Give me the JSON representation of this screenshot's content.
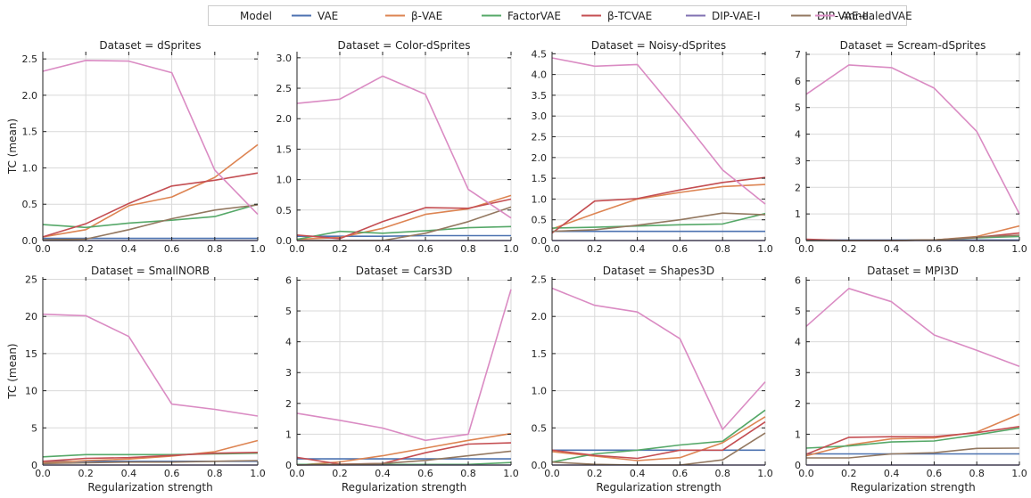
{
  "legend": {
    "title": "Model",
    "placement": "top-center",
    "entries": [
      {
        "label": "VAE",
        "color": "#4c72b0"
      },
      {
        "label": "β-VAE",
        "color": "#dd8452"
      },
      {
        "label": "FactorVAE",
        "color": "#55a868"
      },
      {
        "label": "β-TCVAE",
        "color": "#c44e52"
      },
      {
        "label": "DIP-VAE-I",
        "color": "#8172b2"
      },
      {
        "label": "DIP-VAE-II",
        "color": "#937860"
      },
      {
        "label": "AnnealedVAE",
        "color": "#da8bc3"
      }
    ]
  },
  "chart_data": [
    {
      "type": "line",
      "title": "Dataset = dSprites",
      "xlabel": "",
      "ylabel": "TC (mean)",
      "x": [
        0.0,
        0.2,
        0.4,
        0.6,
        0.8,
        1.0
      ],
      "xlim": [
        0,
        1
      ],
      "ylim": [
        0,
        2.6
      ],
      "xticks": [
        "0.0",
        "0.2",
        "0.4",
        "0.6",
        "0.8",
        "1.0"
      ],
      "yticks": [
        "0.0",
        "0.5",
        "1.0",
        "1.5",
        "2.0",
        "2.5"
      ],
      "ytick_values": [
        0,
        0.5,
        1,
        1.5,
        2,
        2.5
      ],
      "grid": true,
      "series": [
        {
          "name": "VAE",
          "values": [
            0.03,
            0.03,
            0.03,
            0.03,
            0.03,
            0.03
          ]
        },
        {
          "name": "β-VAE",
          "values": [
            0.05,
            0.15,
            0.48,
            0.6,
            0.87,
            1.32
          ]
        },
        {
          "name": "FactorVAE",
          "values": [
            0.22,
            0.18,
            0.24,
            0.28,
            0.33,
            0.5
          ]
        },
        {
          "name": "β-TCVAE",
          "values": [
            0.05,
            0.23,
            0.51,
            0.75,
            0.83,
            0.93
          ]
        },
        {
          "name": "DIP-VAE-I",
          "values": [
            0.0,
            0.0,
            0.0,
            0.0,
            0.0,
            0.0
          ]
        },
        {
          "name": "DIP-VAE-II",
          "values": [
            0.01,
            0.02,
            0.15,
            0.3,
            0.42,
            0.49
          ]
        },
        {
          "name": "AnnealedVAE",
          "values": [
            2.33,
            2.48,
            2.47,
            2.31,
            0.97,
            0.36
          ]
        }
      ]
    },
    {
      "type": "line",
      "title": "Dataset = Color-dSprites",
      "xlabel": "",
      "ylabel": "",
      "x": [
        0.0,
        0.2,
        0.4,
        0.6,
        0.8,
        1.0
      ],
      "xlim": [
        0,
        1
      ],
      "ylim": [
        0,
        3.1
      ],
      "xticks": [
        "0.0",
        "0.2",
        "0.4",
        "0.6",
        "0.8",
        "1.0"
      ],
      "yticks": [
        "0.0",
        "0.5",
        "1.0",
        "1.5",
        "2.0",
        "2.5",
        "3.0"
      ],
      "ytick_values": [
        0,
        0.5,
        1,
        1.5,
        2,
        2.5,
        3
      ],
      "grid": true,
      "series": [
        {
          "name": "VAE",
          "values": [
            0.07,
            0.07,
            0.07,
            0.08,
            0.08,
            0.08
          ]
        },
        {
          "name": "β-VAE",
          "values": [
            0.02,
            0.05,
            0.2,
            0.43,
            0.52,
            0.74
          ]
        },
        {
          "name": "FactorVAE",
          "values": [
            0.02,
            0.15,
            0.12,
            0.16,
            0.21,
            0.23
          ]
        },
        {
          "name": "β-TCVAE",
          "values": [
            0.09,
            0.03,
            0.31,
            0.54,
            0.53,
            0.68
          ]
        },
        {
          "name": "DIP-VAE-I",
          "values": [
            0.0,
            0.0,
            0.0,
            0.0,
            0.0,
            0.0
          ]
        },
        {
          "name": "DIP-VAE-II",
          "values": [
            0.0,
            0.0,
            0.0,
            0.12,
            0.31,
            0.55
          ]
        },
        {
          "name": "AnnealedVAE",
          "values": [
            2.25,
            2.32,
            2.7,
            2.4,
            0.84,
            0.37
          ]
        }
      ]
    },
    {
      "type": "line",
      "title": "Dataset = Noisy-dSprites",
      "xlabel": "",
      "ylabel": "",
      "x": [
        0.0,
        0.2,
        0.4,
        0.6,
        0.8,
        1.0
      ],
      "xlim": [
        0,
        1
      ],
      "ylim": [
        0,
        4.55
      ],
      "xticks": [
        "0.0",
        "0.2",
        "0.4",
        "0.6",
        "0.8",
        "1.0"
      ],
      "yticks": [
        "0.0",
        "0.5",
        "1.0",
        "1.5",
        "2.0",
        "2.5",
        "3.0",
        "3.5",
        "4.0",
        "4.5"
      ],
      "ytick_values": [
        0,
        0.5,
        1,
        1.5,
        2,
        2.5,
        3,
        3.5,
        4,
        4.5
      ],
      "grid": true,
      "series": [
        {
          "name": "VAE",
          "values": [
            0.22,
            0.22,
            0.22,
            0.22,
            0.22,
            0.22
          ]
        },
        {
          "name": "β-VAE",
          "values": [
            0.28,
            0.65,
            1.0,
            1.16,
            1.3,
            1.35
          ]
        },
        {
          "name": "FactorVAE",
          "values": [
            0.3,
            0.32,
            0.35,
            0.38,
            0.4,
            0.65
          ]
        },
        {
          "name": "β-TCVAE",
          "values": [
            0.18,
            0.95,
            1.01,
            1.22,
            1.4,
            1.52
          ]
        },
        {
          "name": "DIP-VAE-I",
          "values": [
            0.0,
            0.0,
            0.0,
            0.0,
            0.0,
            0.0
          ]
        },
        {
          "name": "DIP-VAE-II",
          "values": [
            0.22,
            0.26,
            0.37,
            0.5,
            0.66,
            0.62
          ]
        },
        {
          "name": "AnnealedVAE",
          "values": [
            4.4,
            4.2,
            4.24,
            3.0,
            1.7,
            0.88
          ]
        }
      ]
    },
    {
      "type": "line",
      "title": "Dataset = Scream-dSprites",
      "xlabel": "",
      "ylabel": "",
      "x": [
        0.0,
        0.2,
        0.4,
        0.6,
        0.8,
        1.0
      ],
      "xlim": [
        0,
        1
      ],
      "ylim": [
        0,
        7.1
      ],
      "xticks": [
        "0.0",
        "0.2",
        "0.4",
        "0.6",
        "0.8",
        "1.0"
      ],
      "yticks": [
        "0",
        "1",
        "2",
        "3",
        "4",
        "5",
        "6",
        "7"
      ],
      "ytick_values": [
        0,
        1,
        2,
        3,
        4,
        5,
        6,
        7
      ],
      "grid": true,
      "series": [
        {
          "name": "VAE",
          "values": [
            0.02,
            0.02,
            0.02,
            0.02,
            0.02,
            0.02
          ]
        },
        {
          "name": "β-VAE",
          "values": [
            0.0,
            0.0,
            0.0,
            0.02,
            0.15,
            0.55
          ]
        },
        {
          "name": "FactorVAE",
          "values": [
            0.0,
            0.0,
            0.0,
            0.02,
            0.1,
            0.15
          ]
        },
        {
          "name": "β-TCVAE",
          "values": [
            0.05,
            0.0,
            0.0,
            0.02,
            0.12,
            0.28
          ]
        },
        {
          "name": "DIP-VAE-I",
          "values": [
            0.0,
            0.0,
            0.0,
            0.0,
            0.0,
            0.0
          ]
        },
        {
          "name": "DIP-VAE-II",
          "values": [
            0.0,
            0.0,
            0.0,
            0.02,
            0.13,
            0.2
          ]
        },
        {
          "name": "AnnealedVAE",
          "values": [
            5.5,
            6.6,
            6.5,
            5.73,
            4.1,
            1.0
          ]
        }
      ]
    },
    {
      "type": "line",
      "title": "Dataset = SmallNORB",
      "xlabel": "Regularization strength",
      "ylabel": "TC (mean)",
      "x": [
        0.0,
        0.2,
        0.4,
        0.6,
        0.8,
        1.0
      ],
      "xlim": [
        0,
        1
      ],
      "ylim": [
        0,
        25.3
      ],
      "xticks": [
        "0.0",
        "0.2",
        "0.4",
        "0.6",
        "0.8",
        "1.0"
      ],
      "yticks": [
        "0",
        "5",
        "10",
        "15",
        "20",
        "25"
      ],
      "ytick_values": [
        0,
        5,
        10,
        15,
        20,
        25
      ],
      "grid": true,
      "series": [
        {
          "name": "VAE",
          "values": [
            0.5,
            0.5,
            0.5,
            0.5,
            0.5,
            0.5
          ]
        },
        {
          "name": "β-VAE",
          "values": [
            0.3,
            0.6,
            0.8,
            1.2,
            1.8,
            3.3
          ]
        },
        {
          "name": "FactorVAE",
          "values": [
            1.1,
            1.4,
            1.4,
            1.4,
            1.5,
            1.6
          ]
        },
        {
          "name": "β-TCVAE",
          "values": [
            0.5,
            0.9,
            1.0,
            1.3,
            1.6,
            1.7
          ]
        },
        {
          "name": "DIP-VAE-I",
          "values": [
            0.0,
            0.0,
            0.0,
            0.0,
            0.0,
            0.0
          ]
        },
        {
          "name": "DIP-VAE-II",
          "values": [
            0.2,
            0.3,
            0.4,
            0.4,
            0.5,
            0.6
          ]
        },
        {
          "name": "AnnealedVAE",
          "values": [
            20.3,
            20.1,
            17.3,
            8.2,
            7.5,
            6.6
          ]
        }
      ]
    },
    {
      "type": "line",
      "title": "Dataset = Cars3D",
      "xlabel": "Regularization strength",
      "ylabel": "",
      "x": [
        0.0,
        0.2,
        0.4,
        0.6,
        0.8,
        1.0
      ],
      "xlim": [
        0,
        1
      ],
      "ylim": [
        0,
        6.1
      ],
      "xticks": [
        "0.0",
        "0.2",
        "0.4",
        "0.6",
        "0.8",
        "1.0"
      ],
      "yticks": [
        "0",
        "1",
        "2",
        "3",
        "4",
        "5",
        "6"
      ],
      "ytick_values": [
        0,
        1,
        2,
        3,
        4,
        5,
        6
      ],
      "grid": true,
      "series": [
        {
          "name": "VAE",
          "values": [
            0.2,
            0.2,
            0.2,
            0.2,
            0.2,
            0.2
          ]
        },
        {
          "name": "β-VAE",
          "values": [
            0.0,
            0.1,
            0.3,
            0.55,
            0.8,
            1.02
          ]
        },
        {
          "name": "FactorVAE",
          "values": [
            0.02,
            0.02,
            0.02,
            0.02,
            0.02,
            0.08
          ]
        },
        {
          "name": "β-TCVAE",
          "values": [
            0.25,
            0.03,
            0.05,
            0.4,
            0.68,
            0.72
          ]
        },
        {
          "name": "DIP-VAE-I",
          "values": [
            0.0,
            0.0,
            0.0,
            0.0,
            0.0,
            0.0
          ]
        },
        {
          "name": "DIP-VAE-II",
          "values": [
            0.0,
            0.02,
            0.05,
            0.15,
            0.3,
            0.45
          ]
        },
        {
          "name": "AnnealedVAE",
          "values": [
            1.68,
            1.45,
            1.2,
            0.8,
            1.0,
            5.7
          ]
        }
      ]
    },
    {
      "type": "line",
      "title": "Dataset = Shapes3D",
      "xlabel": "Regularization strength",
      "ylabel": "",
      "x": [
        0.0,
        0.2,
        0.4,
        0.6,
        0.8,
        1.0
      ],
      "xlim": [
        0,
        1
      ],
      "ylim": [
        0,
        2.53
      ],
      "xticks": [
        "0.0",
        "0.2",
        "0.4",
        "0.6",
        "0.8",
        "1.0"
      ],
      "yticks": [
        "0.0",
        "0.5",
        "1.0",
        "1.5",
        "2.0",
        "2.5"
      ],
      "ytick_values": [
        0,
        0.5,
        1,
        1.5,
        2,
        2.5
      ],
      "grid": true,
      "series": [
        {
          "name": "VAE",
          "values": [
            0.2,
            0.2,
            0.2,
            0.2,
            0.2,
            0.2
          ]
        },
        {
          "name": "β-VAE",
          "values": [
            0.18,
            0.12,
            0.06,
            0.1,
            0.3,
            0.65
          ]
        },
        {
          "name": "FactorVAE",
          "values": [
            0.04,
            0.15,
            0.2,
            0.27,
            0.32,
            0.74
          ]
        },
        {
          "name": "β-TCVAE",
          "values": [
            0.2,
            0.13,
            0.09,
            0.2,
            0.2,
            0.58
          ]
        },
        {
          "name": "DIP-VAE-I",
          "values": [
            0.0,
            0.0,
            0.0,
            0.0,
            0.0,
            0.0
          ]
        },
        {
          "name": "DIP-VAE-II",
          "values": [
            0.04,
            0.01,
            0.0,
            0.0,
            0.07,
            0.43
          ]
        },
        {
          "name": "AnnealedVAE",
          "values": [
            2.38,
            2.15,
            2.06,
            1.7,
            0.48,
            1.12
          ]
        }
      ]
    },
    {
      "type": "line",
      "title": "Dataset = MPI3D",
      "xlabel": "Regularization strength",
      "ylabel": "",
      "x": [
        0.0,
        0.2,
        0.4,
        0.6,
        0.8,
        1.0
      ],
      "xlim": [
        0,
        1
      ],
      "ylim": [
        0,
        6.1
      ],
      "xticks": [
        "0.0",
        "0.2",
        "0.4",
        "0.6",
        "0.8",
        "1.0"
      ],
      "yticks": [
        "0",
        "1",
        "2",
        "3",
        "4",
        "5",
        "6"
      ],
      "ytick_values": [
        0,
        1,
        2,
        3,
        4,
        5,
        6
      ],
      "grid": true,
      "series": [
        {
          "name": "VAE",
          "values": [
            0.36,
            0.36,
            0.36,
            0.36,
            0.36,
            0.36
          ]
        },
        {
          "name": "β-VAE",
          "values": [
            0.3,
            0.65,
            0.85,
            0.88,
            1.07,
            1.65
          ]
        },
        {
          "name": "FactorVAE",
          "values": [
            0.55,
            0.62,
            0.75,
            0.78,
            0.98,
            1.2
          ]
        },
        {
          "name": "β-TCVAE",
          "values": [
            0.35,
            0.9,
            0.92,
            0.92,
            1.05,
            1.25
          ]
        },
        {
          "name": "DIP-VAE-I",
          "values": [
            0.0,
            0.0,
            0.0,
            0.0,
            0.0,
            0.0
          ]
        },
        {
          "name": "DIP-VAE-II",
          "values": [
            0.23,
            0.23,
            0.36,
            0.4,
            0.54,
            0.55
          ]
        },
        {
          "name": "AnnealedVAE",
          "values": [
            4.5,
            5.73,
            5.3,
            4.22,
            3.72,
            3.2
          ]
        }
      ]
    }
  ]
}
